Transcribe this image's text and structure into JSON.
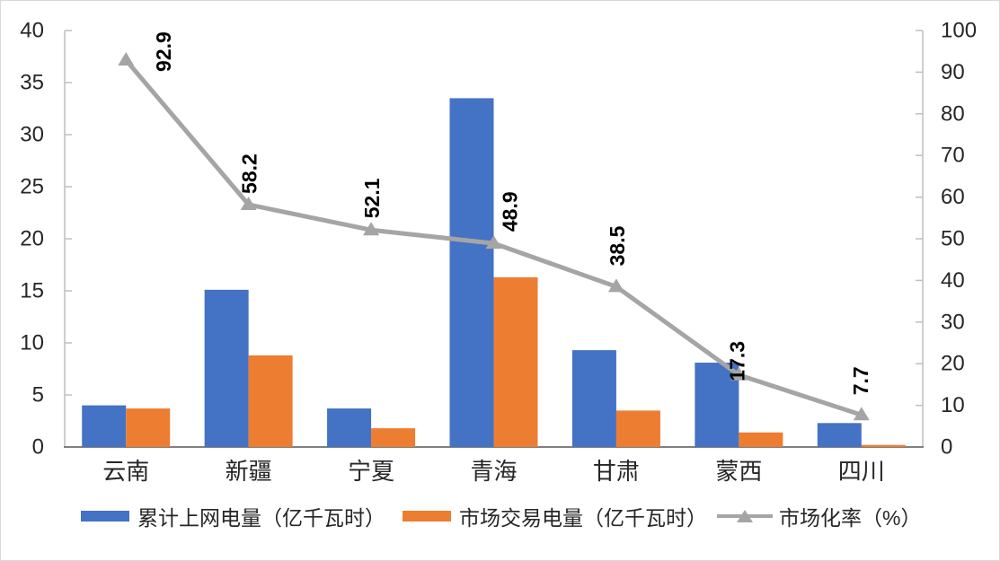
{
  "chart_data": {
    "type": "bar",
    "title": "",
    "categories": [
      "云南",
      "新疆",
      "宁夏",
      "青海",
      "甘肃",
      "蒙西",
      "四川"
    ],
    "series": [
      {
        "name": "累计上网电量（亿千瓦时）",
        "type": "bar",
        "axis": "left",
        "color": "#4472C4",
        "values": [
          4.0,
          15.1,
          3.7,
          33.5,
          9.3,
          8.1,
          2.3
        ]
      },
      {
        "name": "市场交易电量（亿千瓦时）",
        "type": "bar",
        "axis": "left",
        "color": "#ED7D31",
        "values": [
          3.7,
          8.8,
          1.8,
          16.3,
          3.5,
          1.4,
          0.2
        ]
      },
      {
        "name": "市场化率（%）",
        "type": "line",
        "axis": "right",
        "color": "#A5A5A5",
        "values": [
          92.9,
          58.2,
          52.1,
          48.9,
          38.5,
          17.3,
          7.7
        ],
        "data_labels": [
          "92.9",
          "58.2",
          "52.1",
          "48.9",
          "38.5",
          "17.3",
          "7.7"
        ]
      }
    ],
    "left_axis": {
      "min": 0,
      "max": 40,
      "step": 5,
      "ticks": [
        "0",
        "5",
        "10",
        "15",
        "20",
        "25",
        "30",
        "35",
        "40"
      ]
    },
    "right_axis": {
      "min": 0,
      "max": 100,
      "step": 10,
      "ticks": [
        "0",
        "10",
        "20",
        "30",
        "40",
        "50",
        "60",
        "70",
        "80",
        "90",
        "100"
      ]
    },
    "grid": false,
    "legend_position": "bottom",
    "colors": {
      "bar1": "#4472C4",
      "bar2": "#ED7D31",
      "line": "#A5A5A5",
      "axis_text": "#262626",
      "category_text": "#262626",
      "data_label_text": "#000000",
      "axis_line": "#BFBFBF",
      "baseline": "#808080",
      "frame_border": "#D9D9D9"
    }
  }
}
